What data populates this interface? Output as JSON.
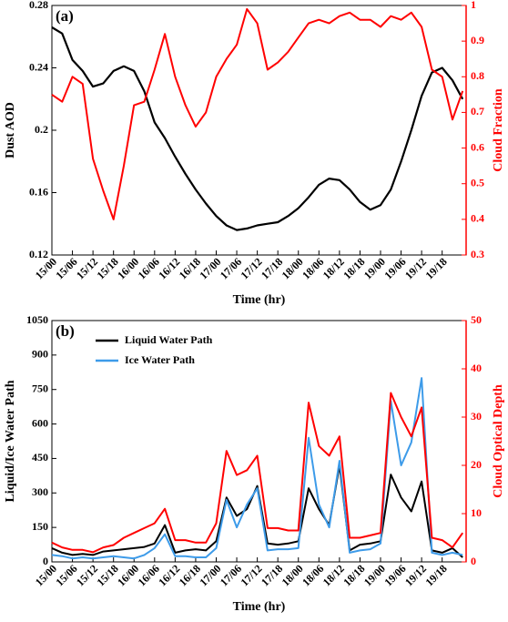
{
  "chart_data": [
    {
      "type": "line",
      "panel_label": "(a)",
      "xlabel": "Time (hr)",
      "ylabel": "Dust AOD",
      "y2label": "Cloud Fraction",
      "x": [
        0,
        3,
        6,
        9,
        12,
        15,
        18,
        21,
        24,
        27,
        30,
        33,
        36,
        39,
        42,
        45,
        48,
        51,
        54,
        57,
        60,
        63,
        66,
        69,
        72,
        75,
        78,
        81,
        84,
        87,
        90,
        93,
        96,
        99,
        102,
        105,
        108,
        111,
        114,
        117,
        120
      ],
      "xlim": [
        0,
        121
      ],
      "xticks": [
        {
          "value": 0,
          "label": "15/00"
        },
        {
          "value": 6,
          "label": "15/06"
        },
        {
          "value": 12,
          "label": "15/12"
        },
        {
          "value": 18,
          "label": "15/18"
        },
        {
          "value": 24,
          "label": "16/00"
        },
        {
          "value": 30,
          "label": "16/06"
        },
        {
          "value": 36,
          "label": "16/12"
        },
        {
          "value": 42,
          "label": "16/18"
        },
        {
          "value": 48,
          "label": "17/00"
        },
        {
          "value": 54,
          "label": "17/06"
        },
        {
          "value": 60,
          "label": "17/12"
        },
        {
          "value": 66,
          "label": "17/18"
        },
        {
          "value": 72,
          "label": "18/00"
        },
        {
          "value": 78,
          "label": "18/06"
        },
        {
          "value": 84,
          "label": "18/12"
        },
        {
          "value": 90,
          "label": "18/18"
        },
        {
          "value": 96,
          "label": "19/00"
        },
        {
          "value": 102,
          "label": "19/06"
        },
        {
          "value": 108,
          "label": "19/12"
        },
        {
          "value": 114,
          "label": "19/18"
        }
      ],
      "ylim": [
        0.12,
        0.28
      ],
      "yticks": [
        0.12,
        0.16,
        0.2,
        0.24,
        0.28
      ],
      "y2lim": [
        0.3,
        1
      ],
      "y2ticks": [
        0.3,
        0.4,
        0.5,
        0.6,
        0.7,
        0.8,
        0.9,
        1
      ],
      "series": [
        {
          "color": "#000000",
          "values": [
            0.266,
            0.262,
            0.245,
            0.238,
            0.228,
            0.23,
            0.238,
            0.241,
            0.238,
            0.225,
            0.205,
            0.195,
            0.183,
            0.172,
            0.162,
            0.153,
            0.145,
            0.139,
            0.136,
            0.137,
            0.139,
            0.14,
            0.141,
            0.145,
            0.15,
            0.157,
            0.165,
            0.169,
            0.168,
            0.162,
            0.154,
            0.149,
            0.152,
            0.162,
            0.18,
            0.2,
            0.222,
            0.237,
            0.24,
            0.232,
            0.22
          ]
        },
        {
          "color": "#ff0000",
          "axis": "y2",
          "values": [
            0.75,
            0.73,
            0.8,
            0.78,
            0.57,
            0.48,
            0.4,
            0.55,
            0.72,
            0.73,
            0.82,
            0.92,
            0.8,
            0.72,
            0.66,
            0.7,
            0.8,
            0.85,
            0.89,
            0.99,
            0.95,
            0.82,
            0.84,
            0.87,
            0.91,
            0.95,
            0.96,
            0.95,
            0.97,
            0.98,
            0.96,
            0.96,
            0.94,
            0.97,
            0.96,
            0.98,
            0.94,
            0.82,
            0.8,
            0.68,
            0.76
          ]
        }
      ]
    },
    {
      "type": "line",
      "panel_label": "(b)",
      "xlabel": "Time (hr)",
      "ylabel": "Liquid/Ice Water Path",
      "y2label": "Cloud Optical Depth",
      "legend": "upper left",
      "x": [
        0,
        3,
        6,
        9,
        12,
        15,
        18,
        21,
        24,
        27,
        30,
        33,
        36,
        39,
        42,
        45,
        48,
        51,
        54,
        57,
        60,
        63,
        66,
        69,
        72,
        75,
        78,
        81,
        84,
        87,
        90,
        93,
        96,
        99,
        102,
        105,
        108,
        111,
        114,
        117,
        120
      ],
      "xlim": [
        0,
        121
      ],
      "xticks": [
        {
          "value": 0,
          "label": "15/00"
        },
        {
          "value": 6,
          "label": "15/06"
        },
        {
          "value": 12,
          "label": "15/12"
        },
        {
          "value": 18,
          "label": "15/18"
        },
        {
          "value": 24,
          "label": "16/00"
        },
        {
          "value": 30,
          "label": "16/06"
        },
        {
          "value": 36,
          "label": "16/12"
        },
        {
          "value": 42,
          "label": "16/18"
        },
        {
          "value": 48,
          "label": "17/00"
        },
        {
          "value": 54,
          "label": "17/06"
        },
        {
          "value": 60,
          "label": "17/12"
        },
        {
          "value": 66,
          "label": "17/18"
        },
        {
          "value": 72,
          "label": "18/00"
        },
        {
          "value": 78,
          "label": "18/06"
        },
        {
          "value": 84,
          "label": "18/12"
        },
        {
          "value": 90,
          "label": "18/18"
        },
        {
          "value": 96,
          "label": "19/00"
        },
        {
          "value": 102,
          "label": "19/06"
        },
        {
          "value": 108,
          "label": "19/12"
        },
        {
          "value": 114,
          "label": "19/18"
        }
      ],
      "ylim": [
        0,
        1050
      ],
      "yticks": [
        0,
        150,
        300,
        450,
        600,
        750,
        900,
        1050
      ],
      "y2lim": [
        0,
        50
      ],
      "y2ticks": [
        0,
        10,
        20,
        30,
        40,
        50
      ],
      "series": [
        {
          "name": "Liquid Water Path",
          "color": "#000000",
          "values": [
            60,
            40,
            30,
            35,
            30,
            45,
            50,
            55,
            60,
            65,
            80,
            160,
            40,
            50,
            55,
            50,
            90,
            280,
            200,
            230,
            330,
            80,
            75,
            80,
            90,
            320,
            230,
            160,
            420,
            50,
            75,
            80,
            90,
            380,
            280,
            220,
            350,
            50,
            40,
            60,
            20
          ]
        },
        {
          "name": "Ice Water Path",
          "color": "#3d9be9",
          "values": [
            30,
            25,
            15,
            20,
            15,
            20,
            25,
            20,
            15,
            30,
            60,
            120,
            25,
            25,
            20,
            20,
            60,
            270,
            150,
            250,
            320,
            50,
            55,
            55,
            60,
            540,
            250,
            150,
            440,
            40,
            50,
            55,
            80,
            700,
            420,
            520,
            800,
            40,
            30,
            40,
            30
          ]
        },
        {
          "color": "#ff0000",
          "axis": "y2",
          "values": [
            4,
            3,
            2.5,
            2.5,
            2,
            3,
            3.5,
            5,
            6,
            7,
            8,
            11,
            4.5,
            4.5,
            4,
            4,
            8,
            23,
            18,
            19,
            22,
            7,
            7,
            6.5,
            6.5,
            33,
            24,
            22,
            26,
            5,
            5,
            5.5,
            6,
            35,
            30,
            26,
            32,
            5,
            4.5,
            3,
            6
          ]
        }
      ]
    }
  ]
}
